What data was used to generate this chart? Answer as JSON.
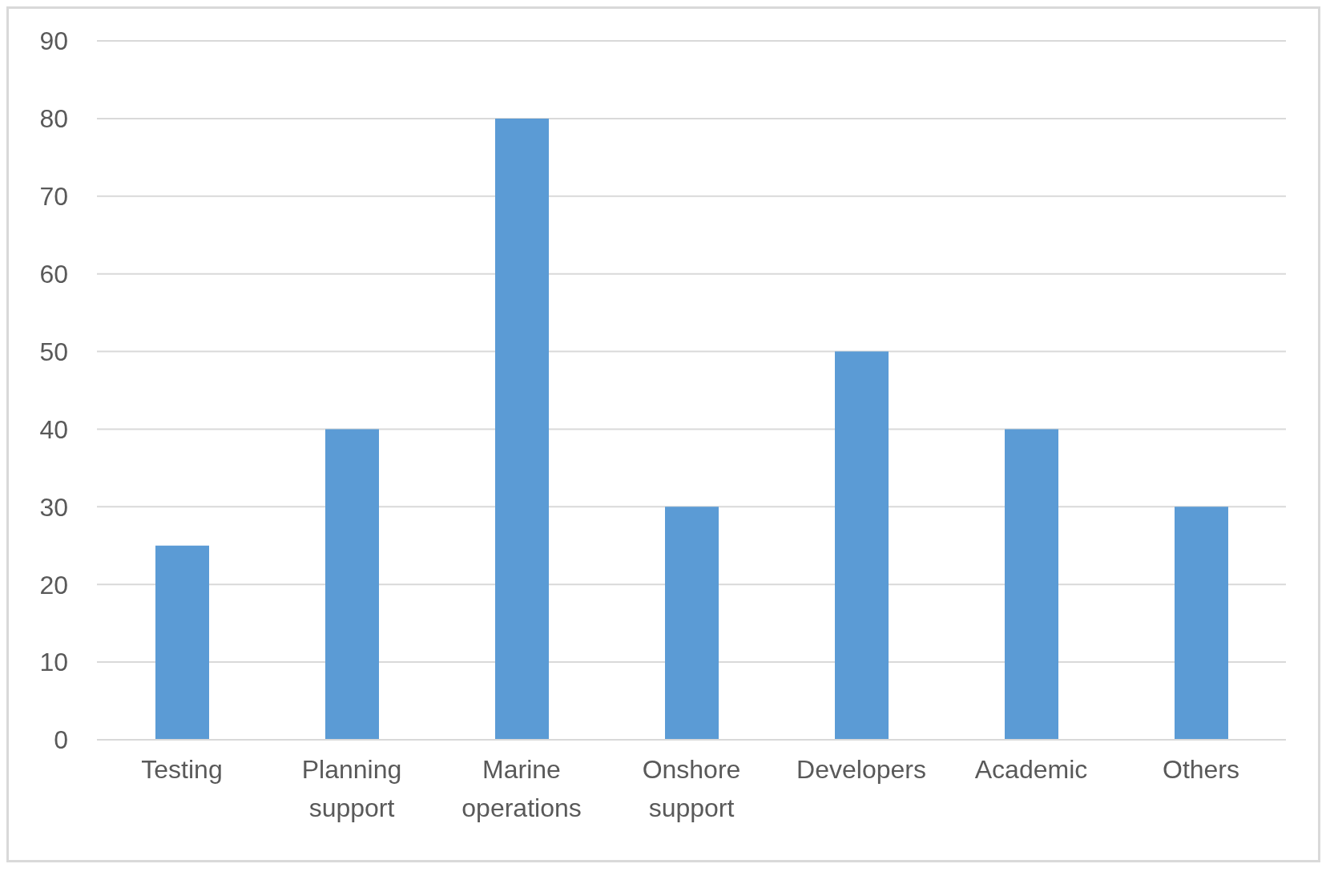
{
  "chart_data": {
    "type": "bar",
    "categories": [
      "Testing",
      "Planning support",
      "Marine operations",
      "Onshore support",
      "Developers",
      "Academic",
      "Others"
    ],
    "values": [
      25,
      40,
      80,
      30,
      50,
      40,
      30
    ],
    "color": "#5b9bd5",
    "ylim": [
      0,
      90
    ],
    "yticks": [
      0,
      10,
      20,
      30,
      40,
      50,
      60,
      70,
      80,
      90
    ],
    "grid": "y",
    "legend": false
  }
}
